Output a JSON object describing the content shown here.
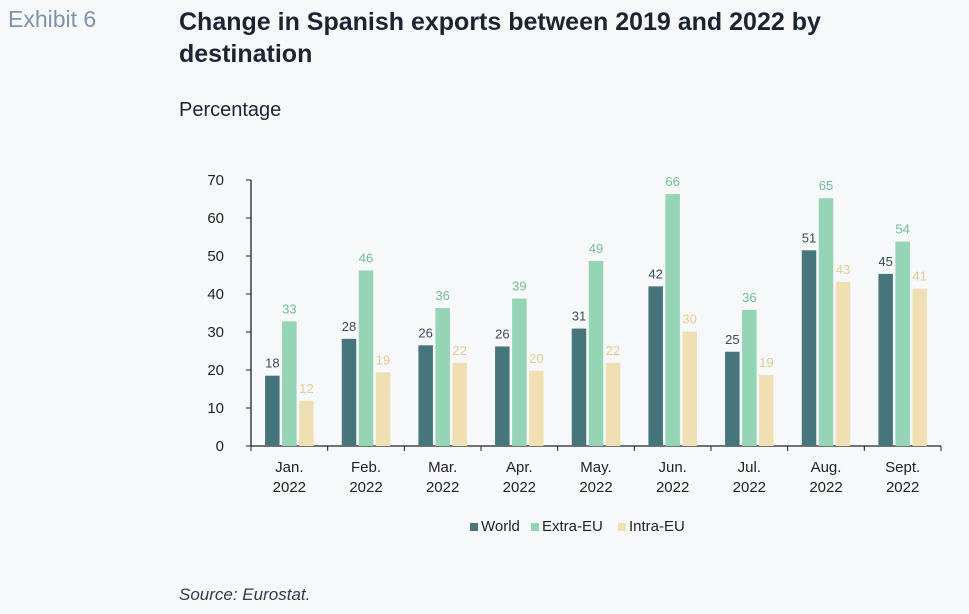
{
  "exhibit_label": "Exhibit 6",
  "title": "Change in Spanish exports between 2019 and 2022 by destination",
  "unit_label": "Percentage",
  "source": "Source: Eurostat.",
  "colors": {
    "World": "#46767b",
    "Extra-EU": "#95d4b4",
    "Intra-EU": "#f1dfb4",
    "value_world": "#3b4a5c",
    "value_extra": "#6fbf94",
    "value_intra": "#e6cb8d"
  },
  "chart_data": {
    "type": "bar",
    "categories": [
      [
        "Jan.",
        "2022"
      ],
      [
        "Feb.",
        "2022"
      ],
      [
        "Mar.",
        "2022"
      ],
      [
        "Apr.",
        "2022"
      ],
      [
        "May.",
        "2022"
      ],
      [
        "Jun.",
        "2022"
      ],
      [
        "Jul.",
        "2022"
      ],
      [
        "Aug.",
        "2022"
      ],
      [
        "Sept.",
        "2022"
      ]
    ],
    "series": [
      {
        "name": "World",
        "values": [
          18.5,
          28.2,
          26.5,
          26.2,
          30.9,
          42.0,
          24.8,
          51.5,
          45.3
        ]
      },
      {
        "name": "Extra-EU",
        "values": [
          32.8,
          46.2,
          36.3,
          38.8,
          48.7,
          66.3,
          35.8,
          65.2,
          53.8
        ]
      },
      {
        "name": "Intra-EU",
        "values": [
          11.9,
          19.4,
          21.9,
          19.8,
          21.9,
          30.1,
          18.7,
          43.2,
          41.4
        ]
      }
    ],
    "value_labels": [
      [
        "18",
        "28",
        "26",
        "26",
        "31",
        "42",
        "25",
        "51",
        "45"
      ],
      [
        "33",
        "46",
        "36",
        "39",
        "49",
        "66",
        "36",
        "65",
        "54"
      ],
      [
        "12",
        "19",
        "22",
        "20",
        "22",
        "30",
        "19",
        "43",
        "41"
      ]
    ],
    "ylim": [
      0,
      70
    ],
    "yticks": [
      0,
      10,
      20,
      30,
      40,
      50,
      60,
      70
    ],
    "grid": false,
    "legend_position": "bottom"
  }
}
